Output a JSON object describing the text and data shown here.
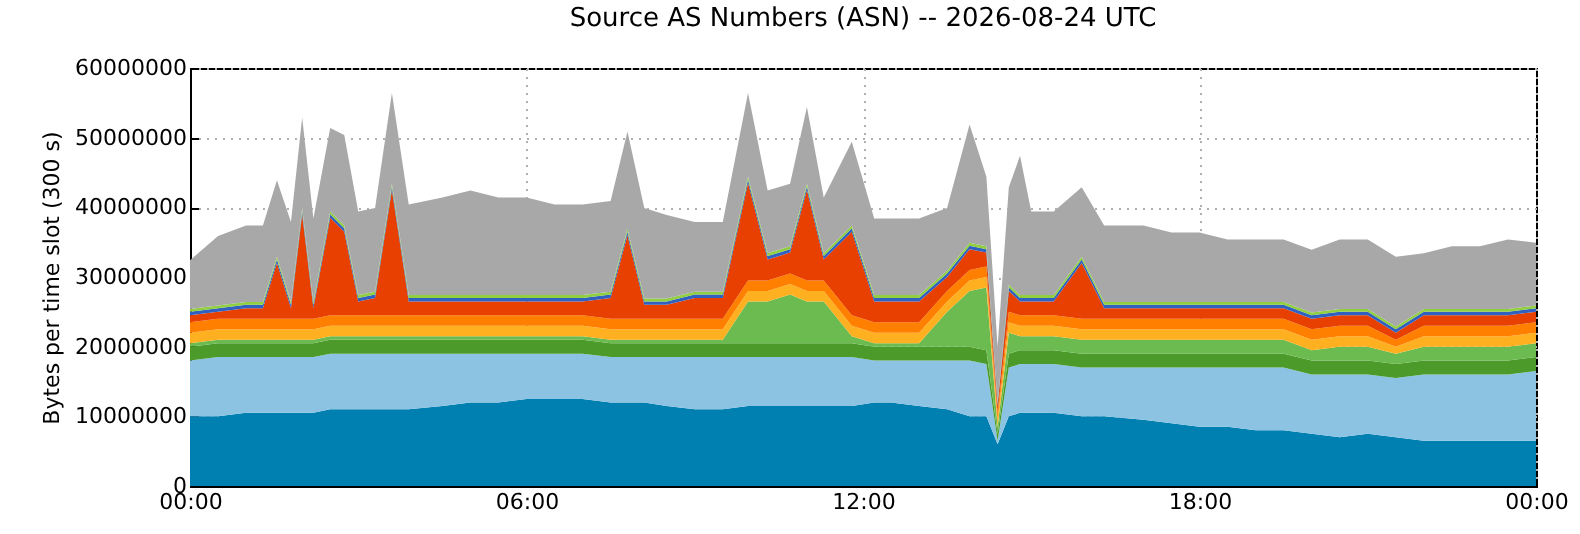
{
  "chart_data": {
    "type": "area",
    "stacked": true,
    "title": "Source AS Numbers (ASN) -- 2026-08-24 UTC",
    "ylabel": "Bytes per time slot (300 s)",
    "x": [
      0,
      0.5,
      1,
      1.3,
      1.55,
      1.8,
      2,
      2.2,
      2.5,
      2.75,
      3,
      3.3,
      3.6,
      3.9,
      4.5,
      5,
      5.5,
      6,
      6.5,
      7,
      7.5,
      7.8,
      8.1,
      8.5,
      9,
      9.5,
      9.95,
      10.3,
      10.7,
      11,
      11.3,
      11.8,
      12.2,
      12.5,
      13,
      13.5,
      13.9,
      14.2,
      14.4,
      14.6,
      14.8,
      15,
      15.4,
      15.9,
      16.3,
      17,
      17.5,
      18,
      18.5,
      19,
      19.5,
      20,
      20.5,
      21,
      21.5,
      22,
      22.5,
      23,
      23.5,
      24
    ],
    "xlim": [
      0,
      24
    ],
    "xticks": [
      {
        "value": 0,
        "label": "00:00"
      },
      {
        "value": 6,
        "label": "06:00"
      },
      {
        "value": 12,
        "label": "12:00"
      },
      {
        "value": 18,
        "label": "18:00"
      },
      {
        "value": 24,
        "label": "00:00"
      }
    ],
    "ylim": [
      0,
      60000000
    ],
    "yticks": [
      0,
      10000000,
      20000000,
      30000000,
      40000000,
      50000000,
      60000000
    ],
    "grid": true,
    "series": [
      {
        "color": "#0080b0",
        "values": [
          10000000.0,
          10000000.0,
          10500000.0,
          10500000.0,
          10500000.0,
          10500000.0,
          10500000.0,
          10500000.0,
          11000000.0,
          11000000.0,
          11000000.0,
          11000000.0,
          11000000.0,
          11000000.0,
          11500000.0,
          12000000.0,
          12000000.0,
          12500000.0,
          12500000.0,
          12500000.0,
          12000000.0,
          12000000.0,
          12000000.0,
          11500000.0,
          11000000.0,
          11000000.0,
          11500000.0,
          11500000.0,
          11500000.0,
          11500000.0,
          11500000.0,
          11500000.0,
          12000000.0,
          12000000.0,
          11500000.0,
          11000000.0,
          10000000.0,
          10000000.0,
          6000000.0,
          10000000.0,
          10500000.0,
          10500000.0,
          10500000.0,
          10000000.0,
          10000000.0,
          9500000.0,
          9000000.0,
          8500000.0,
          8500000.0,
          8000000.0,
          8000000.0,
          7500000.0,
          7000000.0,
          7500000.0,
          7000000.0,
          6500000.0,
          6500000.0,
          6500000.0,
          6500000.0,
          6500000.0
        ]
      },
      {
        "color": "#8cc3e2",
        "values": [
          8000000.0,
          8500000.0,
          8000000.0,
          8000000.0,
          8000000.0,
          8000000.0,
          8000000.0,
          8000000.0,
          8000000.0,
          8000000.0,
          8000000.0,
          8000000.0,
          8000000.0,
          8000000.0,
          7500000.0,
          7000000.0,
          7000000.0,
          6500000.0,
          6500000.0,
          6500000.0,
          6500000.0,
          6500000.0,
          6500000.0,
          7000000.0,
          7500000.0,
          7500000.0,
          7000000.0,
          7000000.0,
          7000000.0,
          7000000.0,
          7000000.0,
          7000000.0,
          6000000.0,
          6000000.0,
          6500000.0,
          7000000.0,
          8000000.0,
          7500000.0,
          500000.0,
          7000000.0,
          7000000.0,
          7000000.0,
          7000000.0,
          7000000.0,
          7000000.0,
          7500000.0,
          8000000.0,
          8500000.0,
          8500000.0,
          9000000.0,
          9000000.0,
          8500000.0,
          9000000.0,
          8500000.0,
          8500000.0,
          9500000.0,
          9500000.0,
          9500000.0,
          9500000.0,
          10000000.0
        ]
      },
      {
        "color": "#4c9a2a",
        "values": [
          2000000.0,
          2000000.0,
          2000000.0,
          2000000.0,
          2000000.0,
          2000000.0,
          2000000.0,
          2000000.0,
          2000000.0,
          2000000.0,
          2000000.0,
          2000000.0,
          2000000.0,
          2000000.0,
          2000000.0,
          2000000.0,
          2000000.0,
          2000000.0,
          2000000.0,
          2000000.0,
          2000000.0,
          2000000.0,
          2000000.0,
          2000000.0,
          2000000.0,
          2000000.0,
          2000000.0,
          2000000.0,
          2000000.0,
          2000000.0,
          2000000.0,
          2000000.0,
          2000000.0,
          2000000.0,
          2000000.0,
          2000000.0,
          2000000.0,
          2000000.0,
          1000000.0,
          2000000.0,
          2000000.0,
          2000000.0,
          2000000.0,
          2000000.0,
          2000000.0,
          2000000.0,
          2000000.0,
          2000000.0,
          2000000.0,
          2000000.0,
          2000000.0,
          2000000.0,
          2000000.0,
          2000000.0,
          2000000.0,
          2000000.0,
          2000000.0,
          2000000.0,
          2000000.0,
          2000000.0
        ]
      },
      {
        "color": "#6cbb50",
        "values": [
          500000.0,
          500000.0,
          500000.0,
          500000.0,
          500000.0,
          500000.0,
          500000.0,
          500000.0,
          500000.0,
          500000.0,
          500000.0,
          500000.0,
          500000.0,
          500000.0,
          500000.0,
          500000.0,
          500000.0,
          500000.0,
          500000.0,
          500000.0,
          500000.0,
          500000.0,
          500000.0,
          500000.0,
          500000.0,
          500000.0,
          6000000.0,
          6000000.0,
          7000000.0,
          6000000.0,
          6000000.0,
          1000000.0,
          500000.0,
          500000.0,
          500000.0,
          5000000.0,
          8000000.0,
          9000000.0,
          1000000.0,
          3000000.0,
          2000000.0,
          2000000.0,
          2000000.0,
          2000000.0,
          2000000.0,
          2000000.0,
          2000000.0,
          2000000.0,
          2000000.0,
          2000000.0,
          2000000.0,
          1500000.0,
          2000000.0,
          2000000.0,
          1500000.0,
          2000000.0,
          2000000.0,
          2000000.0,
          2000000.0,
          2000000.0
        ]
      },
      {
        "color": "#ffb020",
        "values": [
          1500000.0,
          1500000.0,
          1500000.0,
          1500000.0,
          1500000.0,
          1500000.0,
          1500000.0,
          1500000.0,
          1500000.0,
          1500000.0,
          1500000.0,
          1500000.0,
          1500000.0,
          1500000.0,
          1500000.0,
          1500000.0,
          1500000.0,
          1500000.0,
          1500000.0,
          1500000.0,
          1500000.0,
          1500000.0,
          1500000.0,
          1500000.0,
          1500000.0,
          1500000.0,
          1500000.0,
          1500000.0,
          1500000.0,
          1500000.0,
          1500000.0,
          1500000.0,
          1500000.0,
          1500000.0,
          1500000.0,
          1500000.0,
          1500000.0,
          1500000.0,
          1000000.0,
          1500000.0,
          1500000.0,
          1500000.0,
          1500000.0,
          1500000.0,
          1500000.0,
          1500000.0,
          1500000.0,
          1500000.0,
          1500000.0,
          1500000.0,
          1500000.0,
          1500000.0,
          1500000.0,
          1500000.0,
          1000000.0,
          1500000.0,
          1500000.0,
          1500000.0,
          1500000.0,
          1500000.0
        ]
      },
      {
        "color": "#ff8000",
        "values": [
          1500000.0,
          1500000.0,
          1500000.0,
          1500000.0,
          1500000.0,
          1500000.0,
          1500000.0,
          1500000.0,
          1500000.0,
          1500000.0,
          1500000.0,
          1500000.0,
          1500000.0,
          1500000.0,
          1500000.0,
          1500000.0,
          1500000.0,
          1500000.0,
          1500000.0,
          1500000.0,
          1500000.0,
          1500000.0,
          1500000.0,
          1500000.0,
          1500000.0,
          1500000.0,
          1500000.0,
          1500000.0,
          1500000.0,
          1500000.0,
          1500000.0,
          1500000.0,
          1500000.0,
          1500000.0,
          1500000.0,
          1500000.0,
          1500000.0,
          1500000.0,
          1000000.0,
          1500000.0,
          1500000.0,
          1500000.0,
          1500000.0,
          1500000.0,
          1500000.0,
          1500000.0,
          1500000.0,
          1500000.0,
          1500000.0,
          1500000.0,
          1500000.0,
          1500000.0,
          1500000.0,
          1500000.0,
          1000000.0,
          1500000.0,
          1500000.0,
          1500000.0,
          1500000.0,
          1500000.0
        ]
      },
      {
        "color": "#e84000",
        "values": [
          1000000.0,
          1000000.0,
          1500000.0,
          1500000.0,
          8000000.0,
          1500000.0,
          15000000.0,
          1500000.0,
          14000000.0,
          12000000.0,
          2000000.0,
          2500000.0,
          18000000.0,
          2000000.0,
          2000000.0,
          2000000.0,
          2000000.0,
          2000000.0,
          2000000.0,
          2000000.0,
          3000000.0,
          12000000.0,
          2000000.0,
          2000000.0,
          3000000.0,
          3000000.0,
          14000000.0,
          3000000.0,
          3000000.0,
          13000000.0,
          3000000.0,
          12000000.0,
          3000000.0,
          3000000.0,
          3000000.0,
          2000000.0,
          3000000.0,
          2000000.0,
          1000000.0,
          3000000.0,
          2000000.0,
          2000000.0,
          2000000.0,
          8000000.0,
          1500000.0,
          1500000.0,
          1500000.0,
          1500000.0,
          1500000.0,
          1500000.0,
          1500000.0,
          1500000.0,
          1500000.0,
          1500000.0,
          1000000.0,
          1500000.0,
          1500000.0,
          1500000.0,
          1500000.0,
          1500000.0
        ]
      },
      {
        "color": "#3060c0",
        "values": [
          500000.0,
          500000.0,
          500000.0,
          500000.0,
          500000.0,
          500000.0,
          500000.0,
          500000.0,
          500000.0,
          500000.0,
          500000.0,
          500000.0,
          500000.0,
          500000.0,
          500000.0,
          500000.0,
          500000.0,
          500000.0,
          500000.0,
          500000.0,
          500000.0,
          500000.0,
          500000.0,
          500000.0,
          500000.0,
          500000.0,
          500000.0,
          500000.0,
          500000.0,
          500000.0,
          500000.0,
          500000.0,
          500000.0,
          500000.0,
          500000.0,
          500000.0,
          500000.0,
          500000.0,
          300000.0,
          500000.0,
          500000.0,
          500000.0,
          500000.0,
          500000.0,
          500000.0,
          500000.0,
          500000.0,
          500000.0,
          500000.0,
          500000.0,
          500000.0,
          500000.0,
          500000.0,
          500000.0,
          500000.0,
          500000.0,
          500000.0,
          500000.0,
          500000.0,
          500000.0
        ]
      },
      {
        "color": "#90d040",
        "values": [
          400000.0,
          400000.0,
          400000.0,
          400000.0,
          400000.0,
          400000.0,
          400000.0,
          400000.0,
          400000.0,
          400000.0,
          400000.0,
          400000.0,
          400000.0,
          400000.0,
          400000.0,
          400000.0,
          400000.0,
          400000.0,
          400000.0,
          400000.0,
          400000.0,
          400000.0,
          400000.0,
          400000.0,
          400000.0,
          400000.0,
          400000.0,
          400000.0,
          400000.0,
          400000.0,
          400000.0,
          400000.0,
          400000.0,
          400000.0,
          400000.0,
          400000.0,
          400000.0,
          400000.0,
          200000.0,
          400000.0,
          400000.0,
          400000.0,
          400000.0,
          400000.0,
          400000.0,
          400000.0,
          400000.0,
          400000.0,
          400000.0,
          400000.0,
          400000.0,
          400000.0,
          400000.0,
          400000.0,
          400000.0,
          400000.0,
          400000.0,
          400000.0,
          400000.0,
          400000.0
        ]
      },
      {
        "color": "#a8a8a8",
        "values": [
          7000000.0,
          10000000.0,
          11000000.0,
          11000000.0,
          11000000.0,
          11500000.0,
          13000000.0,
          12000000.0,
          12000000.0,
          13000000.0,
          12000000.0,
          12000000.0,
          13000000.0,
          13000000.0,
          14000000.0,
          15000000.0,
          14000000.0,
          14000000.0,
          13000000.0,
          13000000.0,
          13000000.0,
          14000000.0,
          13000000.0,
          12000000.0,
          10000000.0,
          10000000.0,
          12000000.0,
          9000000.0,
          9000000.0,
          11000000.0,
          8000000.0,
          12000000.0,
          11000000.0,
          11000000.0,
          11000000.0,
          9000000.0,
          17000000.0,
          10000000.0,
          8000000.0,
          14000000.0,
          20000000.0,
          12000000.0,
          12000000.0,
          10000000.0,
          11000000.0,
          11000000.0,
          10000000.0,
          10000000.0,
          9000000.0,
          9000000.0,
          9000000.0,
          9000000.0,
          10000000.0,
          10000000.0,
          10000000.0,
          8000000.0,
          9000000.0,
          9000000.0,
          10000000.0,
          9000000.0
        ]
      }
    ]
  }
}
